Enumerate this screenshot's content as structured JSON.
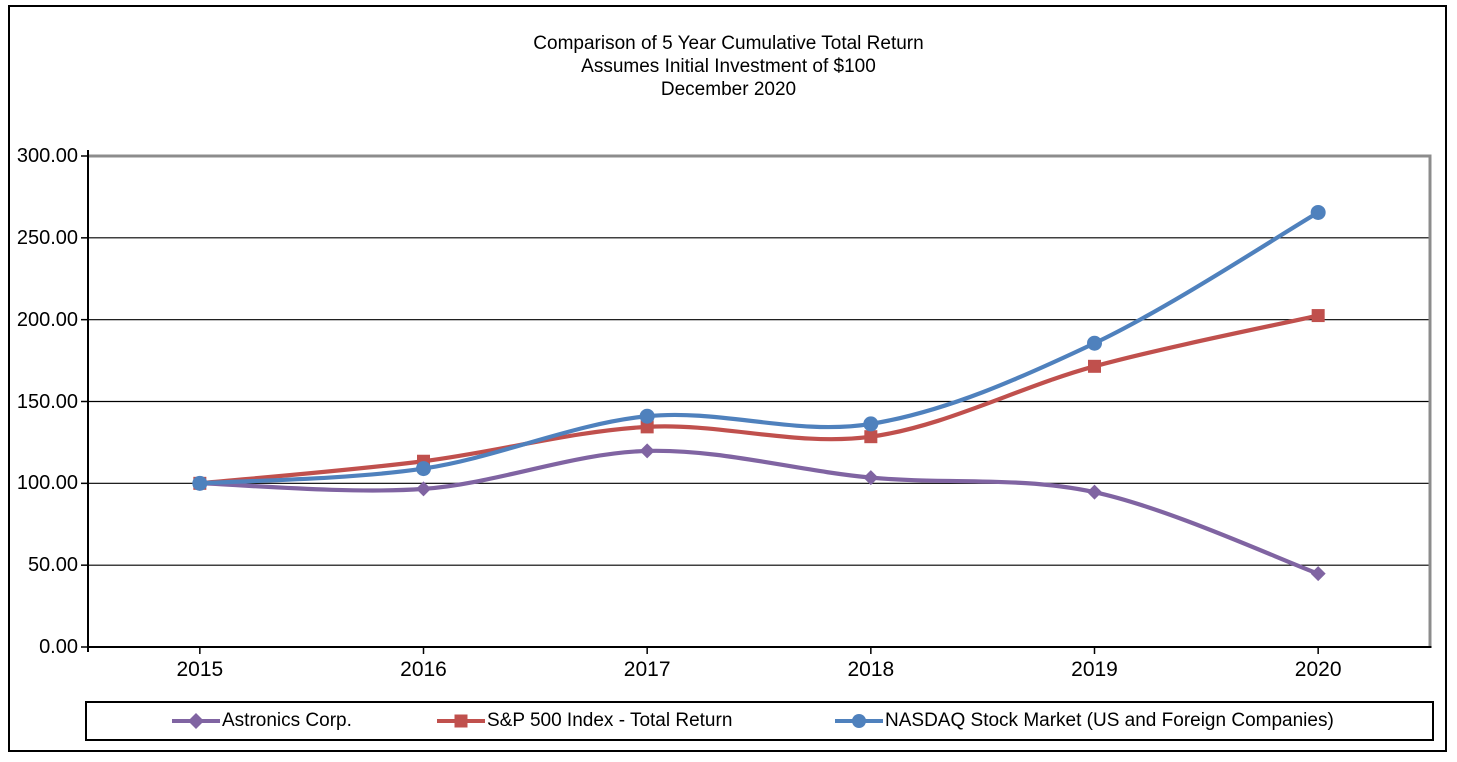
{
  "window": {
    "background": "#ffffff",
    "border_color": "#000000"
  },
  "chart_data": {
    "type": "line",
    "title": "Comparison of 5 Year Cumulative Total Return",
    "subtitle": "Assumes Initial Investment of $100",
    "subtitle2": "December 2020",
    "categories": [
      "2015",
      "2016",
      "2017",
      "2018",
      "2019",
      "2020"
    ],
    "series": [
      {
        "name": "Astronics Corp.",
        "color": "#8064A2",
        "marker": "diamond",
        "values": [
          100.0,
          96.6,
          119.8,
          103.5,
          94.6,
          44.8
        ]
      },
      {
        "name": "S&P 500 Index - Total Return",
        "color": "#C0504D",
        "marker": "square",
        "values": [
          100.0,
          113.5,
          134.5,
          128.5,
          171.5,
          202.5
        ]
      },
      {
        "name": "NASDAQ Stock Market (US and Foreign Companies)",
        "color": "#4F81BD",
        "marker": "circle",
        "values": [
          100.0,
          109.0,
          141.0,
          136.3,
          185.6,
          265.5
        ]
      }
    ],
    "ylim": [
      0,
      300
    ],
    "y_tick_labels": [
      "0.00",
      "50.00",
      "100.00",
      "150.00",
      "200.00",
      "250.00",
      "300.00"
    ],
    "grid": true,
    "smooth": true,
    "legend_position": "bottom",
    "axis_color": "#000000",
    "plot_border_color": "#8c8c8c"
  }
}
